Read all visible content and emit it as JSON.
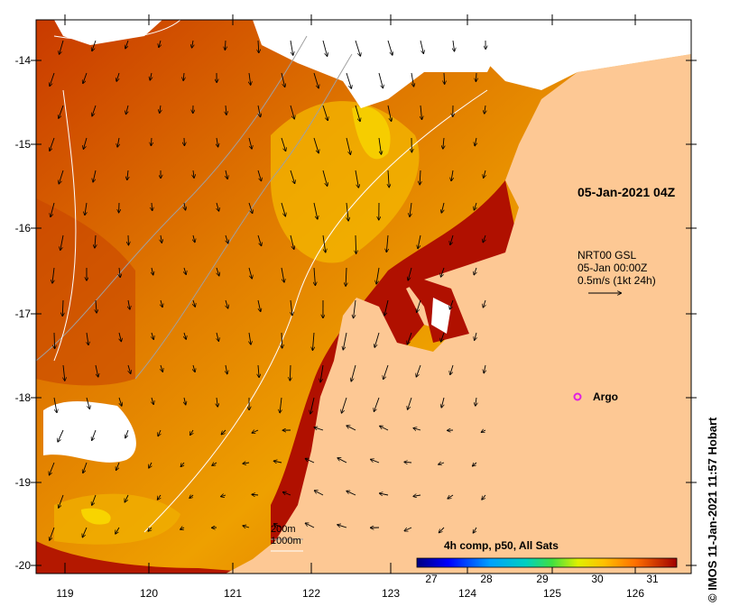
{
  "map": {
    "timestamp": "05-Jan-2021 04Z",
    "current_legend": {
      "product": "NRT00 GSL",
      "date": "05-Jan 00:00Z",
      "scale": "0.5m/s (1kt 24h)"
    },
    "argo_label": "Argo",
    "argo_color": "#e020e0",
    "scale_title": "4h comp, p50, All Sats",
    "scale_ticks": [
      "27",
      "28",
      "29",
      "30",
      "31"
    ],
    "depth_legend": [
      "200m",
      "1000m"
    ],
    "credit": "© IMOS 11-Jan-2021 11:57 Hobart",
    "lon_labels": [
      "119",
      "120",
      "121",
      "122",
      "123",
      "124",
      "125",
      "126"
    ],
    "lat_labels": [
      "-14",
      "-15",
      "-16",
      "-17",
      "-18",
      "-19",
      "-20"
    ],
    "colors": {
      "land": "#fdc894",
      "sst_hot": "#b01000",
      "sst_warm": "#e06a00",
      "sst_mid": "#f0a000",
      "sst_cool": "#f8d800",
      "cloud": "#ffffff"
    }
  }
}
